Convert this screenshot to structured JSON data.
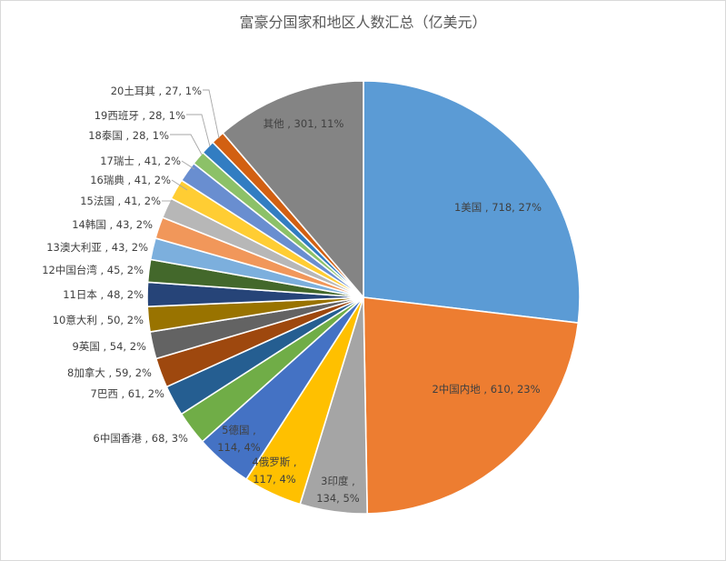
{
  "chart_data": {
    "type": "pie",
    "title": "富豪分国家和地区人数汇总（亿美元）",
    "slices": [
      {
        "category": "1美国",
        "value": 718,
        "percent": "27%",
        "color": "#5b9bd5"
      },
      {
        "category": "2中国内地",
        "value": 610,
        "percent": "23%",
        "color": "#ed7d31"
      },
      {
        "category": "3印度",
        "value": 134,
        "percent": "5%",
        "color": "#a5a5a5"
      },
      {
        "category": "4俄罗斯",
        "value": 117,
        "percent": "4%",
        "color": "#ffc000"
      },
      {
        "category": "5德国",
        "value": 114,
        "percent": "4%",
        "color": "#4472c4"
      },
      {
        "category": "6中国香港",
        "value": 68,
        "percent": "3%",
        "color": "#70ad47"
      },
      {
        "category": "7巴西",
        "value": 61,
        "percent": "2%",
        "color": "#255e91"
      },
      {
        "category": "8加拿大",
        "value": 59,
        "percent": "2%",
        "color": "#9e480e"
      },
      {
        "category": "9英国",
        "value": 54,
        "percent": "2%",
        "color": "#636363"
      },
      {
        "category": "10意大利",
        "value": 50,
        "percent": "2%",
        "color": "#997300"
      },
      {
        "category": "11日本",
        "value": 48,
        "percent": "2%",
        "color": "#264478"
      },
      {
        "category": "12中国台湾",
        "value": 45,
        "percent": "2%",
        "color": "#43682b"
      },
      {
        "category": "13澳大利亚",
        "value": 43,
        "percent": "2%",
        "color": "#7cafdd"
      },
      {
        "category": "14韩国",
        "value": 43,
        "percent": "2%",
        "color": "#f1975a"
      },
      {
        "category": "15法国",
        "value": 41,
        "percent": "2%",
        "color": "#b7b7b7"
      },
      {
        "category": "16瑞典",
        "value": 41,
        "percent": "2%",
        "color": "#ffcd33"
      },
      {
        "category": "17瑞士",
        "value": 41,
        "percent": "2%",
        "color": "#698ed0"
      },
      {
        "category": "18泰国",
        "value": 28,
        "percent": "1%",
        "color": "#8cc168"
      },
      {
        "category": "19西班牙",
        "value": 28,
        "percent": "1%",
        "color": "#327dc2"
      },
      {
        "category": "20土耳其",
        "value": 27,
        "percent": "1%",
        "color": "#d26012"
      },
      {
        "category": "其他",
        "value": 301,
        "percent": "11%",
        "color": "#848484"
      }
    ]
  }
}
